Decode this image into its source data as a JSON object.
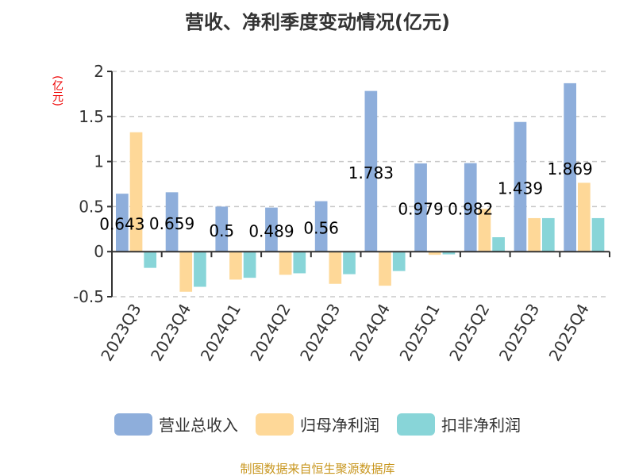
{
  "chart_data": {
    "type": "bar",
    "title": "营收、净利季度变动情况(亿元)",
    "ylabel": "(亿元)",
    "ylim": [
      -0.5,
      2
    ],
    "yticks": [
      "-0.5",
      "0",
      "0.5",
      "1",
      "1.5",
      "2"
    ],
    "ytick_values": [
      -0.5,
      0,
      0.5,
      1,
      1.5,
      2
    ],
    "grid": true,
    "legend_position": "bottom",
    "categories": [
      "2023Q3",
      "2023Q4",
      "2024Q1",
      "2024Q2",
      "2024Q3",
      "2024Q4",
      "2025Q1",
      "2025Q2",
      "2025Q3",
      "2025Q4"
    ],
    "series": [
      {
        "name": "营业总收入",
        "color": "#8eaedb",
        "values": [
          0.643,
          0.659,
          0.5,
          0.489,
          0.56,
          1.783,
          0.979,
          0.982,
          1.439,
          1.869
        ],
        "labels": [
          "0.643",
          "0.659",
          "0.5",
          "0.489",
          "0.56",
          "1.783",
          "0.979",
          "0.982",
          "1.439",
          "1.869"
        ]
      },
      {
        "name": "归母净利润",
        "color": "#fed898",
        "values": [
          1.325,
          -0.445,
          -0.31,
          -0.257,
          -0.357,
          -0.378,
          -0.035,
          0.475,
          0.372,
          0.764
        ]
      },
      {
        "name": "扣非净利润",
        "color": "#88d5d8",
        "values": [
          -0.18,
          -0.39,
          -0.29,
          -0.24,
          -0.25,
          -0.215,
          -0.03,
          0.16,
          0.372,
          0.372
        ]
      }
    ]
  },
  "source": "制图数据来自恒生聚源数据库"
}
